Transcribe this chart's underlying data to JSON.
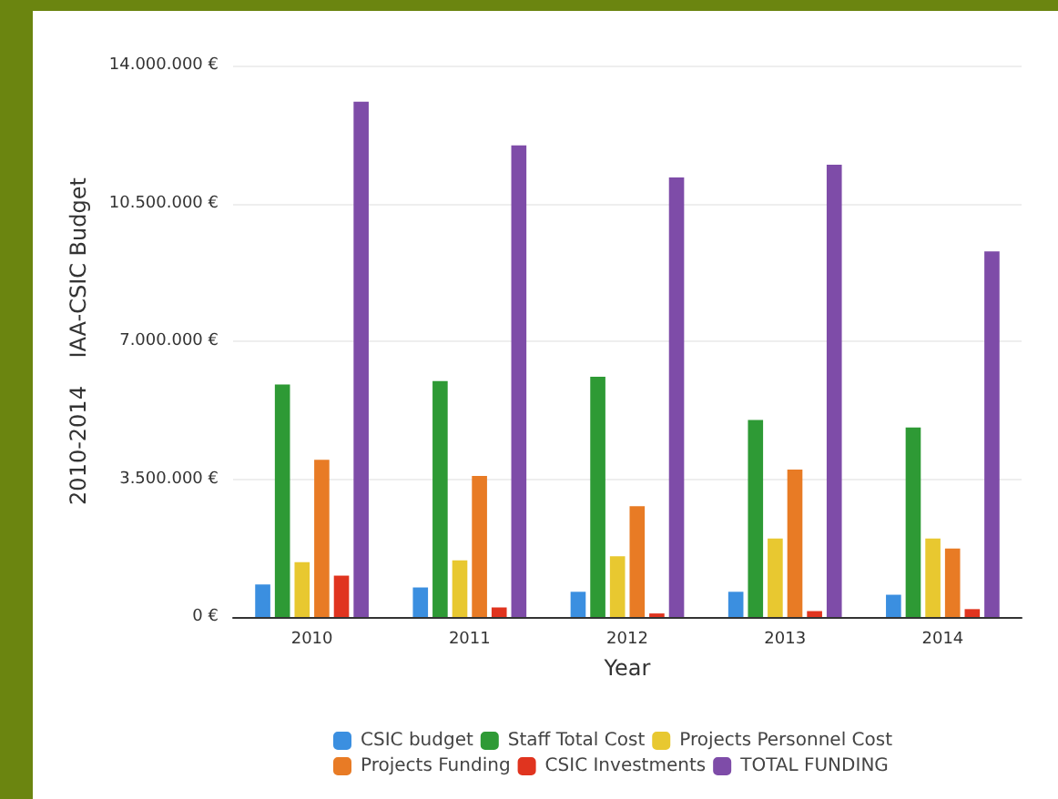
{
  "chart_data": {
    "type": "bar",
    "xlabel": "Year",
    "ylabel": "2010-2014    IAA-CSIC Budget",
    "categories": [
      "2010",
      "2011",
      "2012",
      "2013",
      "2014"
    ],
    "series": [
      {
        "name": "CSIC budget",
        "color": "#3b8fe0",
        "values": [
          825000,
          750000,
          640000,
          640000,
          565000
        ]
      },
      {
        "name": "Staff Total Cost",
        "color": "#2e9a35",
        "values": [
          5900000,
          5990000,
          6100000,
          5000000,
          4810000
        ]
      },
      {
        "name": "Projects Personnel Cost",
        "color": "#e8c830",
        "values": [
          1390000,
          1440000,
          1540000,
          1990000,
          1990000
        ]
      },
      {
        "name": "Projects Funding",
        "color": "#e87b25",
        "values": [
          3990000,
          3580000,
          2810000,
          3740000,
          1740000
        ]
      },
      {
        "name": "CSIC Investments",
        "color": "#e0341f",
        "values": [
          1050000,
          245000,
          90000,
          150000,
          200000
        ]
      },
      {
        "name": "TOTAL FUNDING",
        "color": "#7e4ca8",
        "values": [
          13080000,
          11970000,
          11160000,
          11480000,
          9280000
        ]
      }
    ],
    "ylim": [
      0,
      14000000
    ],
    "yticks": [
      {
        "value": 0,
        "label": "0 €"
      },
      {
        "value": 3500000,
        "label": "3.500.000 €"
      },
      {
        "value": 7000000,
        "label": "7.000.000 €"
      },
      {
        "value": 10500000,
        "label": "10.500.000 €"
      },
      {
        "value": 14000000,
        "label": "14.000.000 €"
      }
    ],
    "grid": "y",
    "legend": "bottom"
  }
}
